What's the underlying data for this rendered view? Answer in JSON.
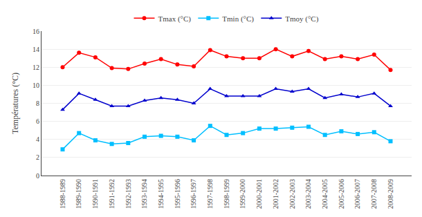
{
  "chart_data": {
    "type": "line",
    "categories": [
      "1988-1989",
      "1989-1990",
      "1990-1991",
      "1991-1992",
      "1992-1993",
      "1993-1994",
      "1994-1995",
      "1995-1996",
      "1996-1997",
      "1997-1998",
      "1998-1999",
      "1999-2000",
      "2000-2001",
      "2001-2002",
      "2002-2003",
      "2003-2004",
      "2004-2005",
      "2005-2006",
      "2006-2007",
      "2007-2008",
      "2008-2009"
    ],
    "series": [
      {
        "name": "Tmax (°C)",
        "color": "#FF0000",
        "marker": "circle",
        "values": [
          12.0,
          13.6,
          13.1,
          11.9,
          11.8,
          12.4,
          12.9,
          12.3,
          12.1,
          13.9,
          13.2,
          13.0,
          13.0,
          14.0,
          13.2,
          13.8,
          12.9,
          13.2,
          12.9,
          13.4,
          11.7
        ]
      },
      {
        "name": "Tmin (°C)",
        "color": "#00BFFF",
        "marker": "square",
        "values": [
          2.9,
          4.7,
          3.9,
          3.5,
          3.6,
          4.3,
          4.4,
          4.3,
          3.9,
          5.5,
          4.5,
          4.7,
          5.2,
          5.2,
          5.3,
          5.4,
          4.5,
          4.9,
          4.6,
          4.8,
          3.8
        ]
      },
      {
        "name": "Tmoy (°C)",
        "color": "#0000CD",
        "marker": "triangle",
        "values": [
          7.3,
          9.1,
          8.4,
          7.7,
          7.7,
          8.3,
          8.6,
          8.4,
          8.0,
          9.6,
          8.8,
          8.8,
          8.8,
          9.6,
          9.3,
          9.6,
          8.6,
          9.0,
          8.7,
          9.1,
          7.7
        ]
      }
    ],
    "ylabel": "Températures (°C)",
    "ylim": [
      0,
      16
    ],
    "yticks": [
      0,
      2,
      4,
      6,
      8,
      10,
      12,
      14,
      16
    ],
    "grid": true,
    "legend": "top"
  }
}
